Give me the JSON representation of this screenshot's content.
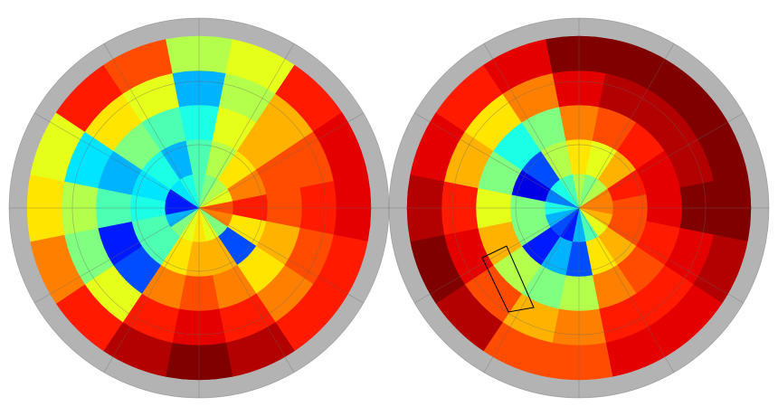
{
  "chart_data": {
    "type": "polar-heatmap",
    "colormap": "jet",
    "vlim": [
      0,
      1
    ],
    "panels": [
      {
        "values": [
          [
            0.45,
            0.45,
            0.4,
            0.3,
            0.55
          ],
          [
            0.5,
            0.55,
            0.6,
            0.55,
            0.6
          ],
          [
            0.55,
            0.65,
            0.7,
            0.7,
            0.85
          ],
          [
            0.6,
            0.75,
            0.8,
            0.8,
            0.9
          ],
          [
            0.8,
            0.85,
            0.8,
            0.85,
            0.9
          ],
          [
            0.75,
            0.65,
            0.7,
            0.8,
            0.85
          ],
          [
            0.5,
            0.2,
            0.65,
            0.75,
            0.85
          ],
          [
            0.6,
            0.7,
            0.75,
            0.85,
            0.95
          ],
          [
            0.65,
            0.7,
            0.8,
            0.9,
            1.0
          ],
          [
            0.6,
            0.65,
            0.75,
            0.85,
            0.95
          ],
          [
            0.5,
            0.45,
            0.2,
            0.6,
            0.85
          ],
          [
            0.3,
            0.45,
            0.15,
            0.5,
            0.75
          ],
          [
            0.15,
            0.4,
            0.45,
            0.55,
            0.65
          ],
          [
            0.15,
            0.35,
            0.3,
            0.35,
            0.6
          ],
          [
            0.35,
            0.4,
            0.5,
            0.65,
            0.85
          ],
          [
            0.4,
            0.3,
            0.45,
            0.6,
            0.8
          ]
        ]
      },
      {
        "values": [
          [
            0.55,
            0.65,
            0.75,
            0.9,
            1.0
          ],
          [
            0.5,
            0.6,
            0.8,
            0.95,
            1.0
          ],
          [
            0.55,
            0.7,
            0.85,
            0.95,
            1.0
          ],
          [
            0.75,
            0.85,
            0.9,
            0.95,
            1.0
          ],
          [
            0.75,
            0.8,
            0.9,
            1.0,
            1.0
          ],
          [
            0.7,
            0.8,
            0.85,
            0.9,
            0.95
          ],
          [
            0.6,
            0.7,
            0.8,
            0.85,
            0.9
          ],
          [
            0.45,
            0.65,
            0.75,
            0.85,
            0.9
          ],
          [
            0.3,
            0.2,
            0.55,
            0.75,
            0.8
          ],
          [
            0.15,
            0.3,
            0.5,
            0.7,
            0.8
          ],
          [
            0.2,
            0.15,
            0.55,
            0.8,
            0.95
          ],
          [
            0.3,
            0.5,
            0.7,
            0.9,
            1.0
          ],
          [
            0.4,
            0.5,
            0.6,
            0.85,
            0.95
          ],
          [
            0.25,
            0.1,
            0.5,
            0.7,
            0.9
          ],
          [
            0.4,
            0.2,
            0.4,
            0.65,
            0.85
          ],
          [
            0.45,
            0.55,
            0.5,
            0.75,
            0.9
          ]
        ]
      }
    ]
  }
}
